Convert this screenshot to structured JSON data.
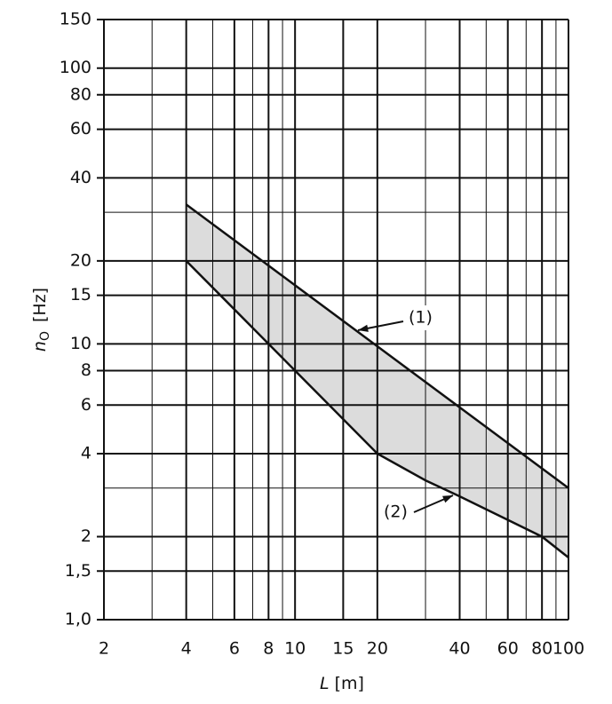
{
  "chart_data": {
    "type": "band",
    "xlabel": "L",
    "xlabel_unit": "[m]",
    "ylabel": "n",
    "ylabel_sub": "O",
    "ylabel_unit": "[Hz]",
    "log_x": true,
    "log_y": true,
    "grid": true,
    "xlim": [
      2,
      100
    ],
    "ylim": [
      1,
      150
    ],
    "xticks": [
      2,
      4,
      6,
      8,
      10,
      15,
      20,
      40,
      60,
      80,
      100
    ],
    "yticks": [
      {
        "value": 1,
        "label": "1,0"
      },
      {
        "value": 1.5,
        "label": "1,5"
      },
      2,
      4,
      6,
      8,
      10,
      15,
      20,
      40,
      60,
      80,
      100,
      150
    ],
    "minor_xticks": [
      3,
      5,
      7,
      9,
      30,
      50,
      70,
      90
    ],
    "minor_yticks": [
      3,
      30
    ],
    "fill_color": "#dcdcdc",
    "series": [
      {
        "name": "(1)",
        "color": "#111111",
        "x": [
          4,
          100
        ],
        "values": [
          32,
          3
        ]
      },
      {
        "name": "(2)",
        "color": "#111111",
        "x": [
          4,
          10,
          20,
          30,
          40,
          60,
          80,
          100
        ],
        "values": [
          20,
          8,
          4,
          3.2,
          2.8,
          2.3,
          2,
          1.68
        ]
      }
    ]
  }
}
